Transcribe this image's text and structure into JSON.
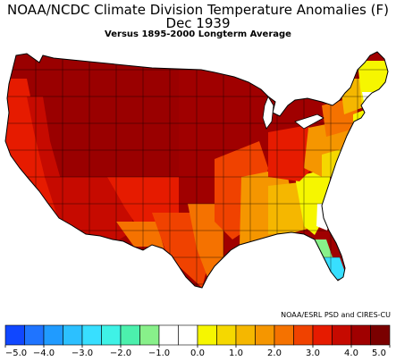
{
  "header": {
    "title": "NOAA/NCDC Climate Division Temperature Anomalies (F)",
    "subtitle": "Dec 1939",
    "baseline": "Versus 1895-2000 Longterm Average"
  },
  "credit": "NOAA/ESRL PSD and CIRES-CU",
  "legend": {
    "bins": [
      {
        "color": "#1047ff"
      },
      {
        "color": "#1f74ff"
      },
      {
        "color": "#209bff"
      },
      {
        "color": "#2cc0ff"
      },
      {
        "color": "#38dfff"
      },
      {
        "color": "#3ff2e6"
      },
      {
        "color": "#4cf0ad"
      },
      {
        "color": "#88f08a"
      },
      {
        "color": "#ffffff"
      },
      {
        "color": "#ffffff"
      },
      {
        "color": "#f6f600"
      },
      {
        "color": "#f5d800"
      },
      {
        "color": "#f5b700"
      },
      {
        "color": "#f59600"
      },
      {
        "color": "#f57200"
      },
      {
        "color": "#f04200"
      },
      {
        "color": "#e61b00"
      },
      {
        "color": "#c60a00"
      },
      {
        "color": "#a00000"
      },
      {
        "color": "#7a0000"
      }
    ],
    "tick_labels": [
      "−5.0",
      "−4.0",
      "−3.0",
      "−2.0",
      "−1.0",
      "0.0",
      "1.0",
      "2.0",
      "3.0",
      "4.0",
      "5.0"
    ]
  },
  "colors": {
    "outline": "#000000"
  }
}
